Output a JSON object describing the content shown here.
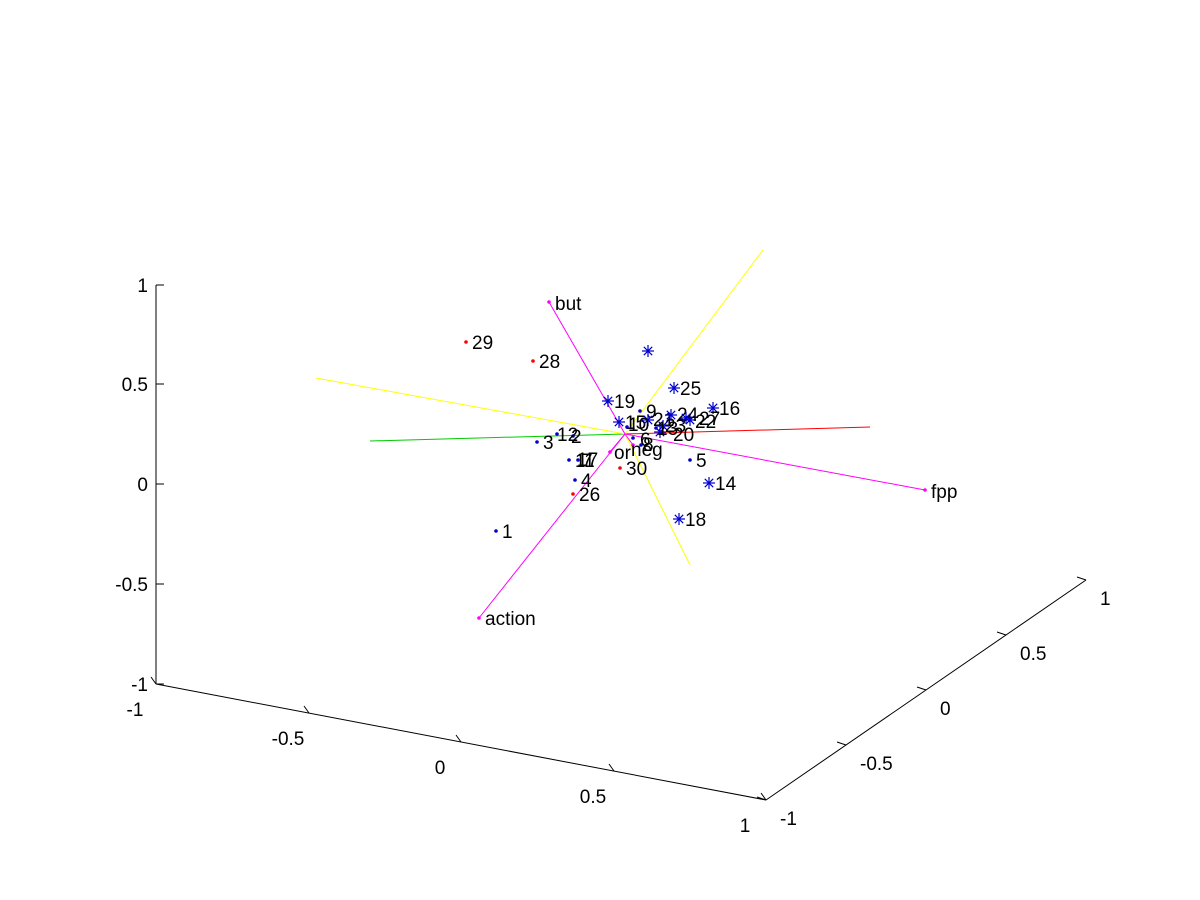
{
  "chart_data": {
    "type": "scatter",
    "view": "3d",
    "grid": false,
    "title": "",
    "x_axis": {
      "ticks": [
        "-1",
        "-0.5",
        "0",
        "0.5",
        "1"
      ],
      "range": [
        -1,
        1
      ]
    },
    "y_axis": {
      "ticks": [
        "-1",
        "-0.5",
        "0",
        "0.5",
        "1"
      ],
      "range": [
        -1,
        1
      ]
    },
    "z_axis": {
      "ticks": [
        "-1",
        "-0.5",
        "0",
        "0.5",
        "1"
      ],
      "range": [
        -1,
        1
      ]
    },
    "biplot_vectors": [
      {
        "label": "but",
        "color": "#ff00ff"
      },
      {
        "label": "action",
        "color": "#ff00ff"
      },
      {
        "label": "fpp",
        "color": "#ff00ff"
      },
      {
        "label": "neg",
        "color": "#ff00ff"
      },
      {
        "label": "or",
        "color": "#ff00ff"
      }
    ],
    "reference_lines": [
      {
        "name": "x",
        "color": "#ff0000"
      },
      {
        "name": "y",
        "color": "#00cc00"
      },
      {
        "name": "z",
        "color": "#ffff00"
      }
    ],
    "point_groups": [
      {
        "marker": "dot",
        "color": "#0000cc",
        "labels": [
          "1",
          "2",
          "3",
          "4",
          "5",
          "7",
          "9",
          "11",
          "12"
        ]
      },
      {
        "marker": "dot",
        "color": "#ff0000",
        "labels": [
          "26",
          "28",
          "29",
          "30"
        ]
      },
      {
        "marker": "star",
        "color": "#0000cc",
        "labels": [
          "14",
          "16",
          "17",
          "18",
          "19",
          "25",
          "15",
          "20",
          "21",
          "22",
          "23",
          "24",
          "27"
        ]
      },
      {
        "marker": "dot",
        "color": "#0000cc",
        "labels": [
          "6",
          "8",
          "10",
          "13"
        ]
      }
    ]
  }
}
